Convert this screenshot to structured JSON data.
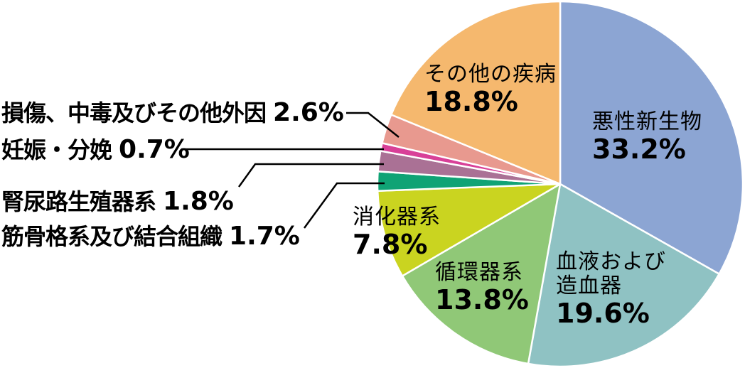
{
  "chart_data": {
    "type": "pie",
    "title": "",
    "unit": "%",
    "order": "clockwise-from-top",
    "legend_position": "none",
    "background_color": "#FFFFFF",
    "slice_stroke_color": "#FFFFFF",
    "leader_line_color": "#000000",
    "text_color": "#000000",
    "segments": [
      {
        "id": "malignant-neoplasms",
        "label": "悪性新生物",
        "value": 33.2,
        "display": "33.2%",
        "color": "#8CA5D3",
        "label_position": "inside"
      },
      {
        "id": "blood-hematopoietic",
        "label": "血液および造血器",
        "value": 19.6,
        "display": "19.6%",
        "color": "#8FC2C3",
        "label_position": "inside",
        "label_lines": [
          "血液および",
          "造血器"
        ]
      },
      {
        "id": "circulatory",
        "label": "循環器系",
        "value": 13.8,
        "display": "13.8%",
        "color": "#90C877",
        "label_position": "inside"
      },
      {
        "id": "digestive",
        "label": "消化器系",
        "value": 7.8,
        "display": "7.8%",
        "color": "#CAD420",
        "label_position": "inside"
      },
      {
        "id": "musculoskeletal",
        "label": "筋骨格系及び結合組織",
        "value": 1.7,
        "display": "1.7%",
        "color": "#10A375",
        "label_position": "outside-left"
      },
      {
        "id": "genitourinary",
        "label": "腎尿路生殖器系",
        "value": 1.8,
        "display": "1.8%",
        "color": "#AA7195",
        "label_position": "outside-left"
      },
      {
        "id": "pregnancy-childbirth",
        "label": "妊娠・分娩",
        "value": 0.7,
        "display": "0.7%",
        "color": "#D84098",
        "label_position": "outside-left"
      },
      {
        "id": "injury-poisoning",
        "label": "損傷、中毒及びその他外因",
        "value": 2.6,
        "display": "2.6%",
        "color": "#E8998F",
        "label_position": "outside-left"
      },
      {
        "id": "other-diseases",
        "label": "その他の疾病",
        "value": 18.8,
        "display": "18.8%",
        "color": "#F5B86E",
        "label_position": "inside"
      }
    ]
  }
}
